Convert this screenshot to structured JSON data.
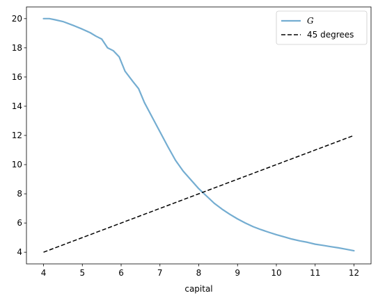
{
  "chart_data": {
    "type": "line",
    "title": "",
    "xlabel": "capital",
    "ylabel": "",
    "xlim": [
      3.56,
      12.44
    ],
    "ylim": [
      3.2,
      20.8
    ],
    "xticks": [
      4,
      5,
      6,
      7,
      8,
      9,
      10,
      11,
      12
    ],
    "yticks": [
      4,
      6,
      8,
      10,
      12,
      14,
      16,
      18,
      20
    ],
    "grid": false,
    "legend_position": "top-right",
    "series": [
      {
        "name": "G",
        "color": "#74add1",
        "style": "solid",
        "x": [
          4.0,
          4.15,
          4.3,
          4.5,
          4.8,
          5.0,
          5.2,
          5.35,
          5.5,
          5.65,
          5.8,
          5.95,
          6.1,
          6.3,
          6.45,
          6.6,
          6.8,
          7.0,
          7.2,
          7.4,
          7.6,
          7.8,
          8.0,
          8.2,
          8.4,
          8.6,
          8.8,
          9.0,
          9.2,
          9.4,
          9.6,
          9.8,
          10.0,
          10.2,
          10.4,
          10.6,
          10.8,
          11.0,
          11.2,
          11.4,
          11.6,
          11.8,
          12.0
        ],
        "y": [
          20.0,
          20.0,
          19.92,
          19.8,
          19.5,
          19.28,
          19.04,
          18.8,
          18.6,
          18.0,
          17.8,
          17.38,
          16.4,
          15.7,
          15.2,
          14.25,
          13.25,
          12.25,
          11.25,
          10.3,
          9.55,
          8.95,
          8.35,
          7.85,
          7.35,
          6.95,
          6.6,
          6.28,
          6.0,
          5.75,
          5.55,
          5.37,
          5.2,
          5.05,
          4.9,
          4.78,
          4.68,
          4.55,
          4.47,
          4.38,
          4.3,
          4.2,
          4.1
        ]
      },
      {
        "name": "45 degrees",
        "color": "#000000",
        "style": "dashed",
        "x": [
          4,
          12
        ],
        "y": [
          4,
          12
        ]
      }
    ]
  }
}
